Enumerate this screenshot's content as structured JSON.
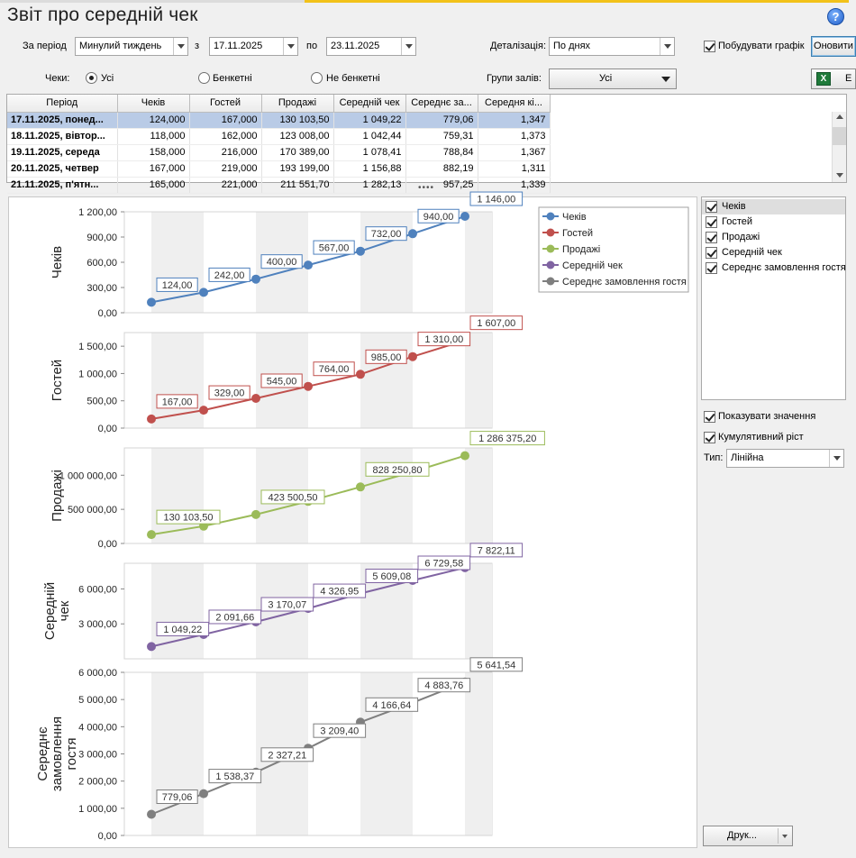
{
  "window": {
    "title": "Звіт про середній чек",
    "help_icon": "question-icon"
  },
  "filters": {
    "period_label": "За період",
    "period_value": "Минулий тиждень",
    "from_label": "з",
    "from_value": "17.11.2025",
    "to_label": "по",
    "to_value": "23.11.2025",
    "detail_label": "Деталізація:",
    "detail_value": "По днях",
    "build_chart_label": "Побудувати графік",
    "build_chart_checked": true,
    "update_label": "Оновити",
    "checks_label": "Чеки:",
    "radio_all": "Усі",
    "radio_banquet": "Бенкетні",
    "radio_nonbanquet": "Не бенкетні",
    "radio_selected": "all",
    "hall_groups_label": "Групи залів:",
    "hall_groups_value": "Усі",
    "excel_icon": "excel-icon",
    "excel_label": "E"
  },
  "table": {
    "columns": [
      "Період",
      "Чеків",
      "Гостей",
      "Продажі",
      "Середній чек",
      "Середнє за...",
      "Середня кі..."
    ],
    "rows": [
      [
        "17.11.2025, понед...",
        "124,000",
        "167,000",
        "130 103,50",
        "1 049,22",
        "779,06",
        "1,347"
      ],
      [
        "18.11.2025, вівтор...",
        "118,000",
        "162,000",
        "123 008,00",
        "1 042,44",
        "759,31",
        "1,373"
      ],
      [
        "19.11.2025, середа",
        "158,000",
        "216,000",
        "170 389,00",
        "1 078,41",
        "788,84",
        "1,367"
      ],
      [
        "20.11.2025, четвер",
        "167,000",
        "219,000",
        "193 199,00",
        "1 156,88",
        "882,19",
        "1,311"
      ],
      [
        "21.11.2025, п'ятн...",
        "165,000",
        "221,000",
        "211 551,70",
        "1 282,13",
        "957,25",
        "1,339"
      ]
    ],
    "selected_row": 0
  },
  "series_list": {
    "items": [
      {
        "label": "Чеків",
        "checked": true
      },
      {
        "label": "Гостей",
        "checked": true
      },
      {
        "label": "Продажі",
        "checked": true
      },
      {
        "label": "Середній чек",
        "checked": true
      },
      {
        "label": "Середнє замовлення гостя",
        "checked": true
      }
    ]
  },
  "options": {
    "show_values_label": "Показувати значення",
    "show_values_checked": true,
    "cumulative_label": "Кумулятивний ріст",
    "cumulative_checked": true,
    "type_label": "Тип:",
    "type_value": "Лінійна",
    "print_label": "Друк..."
  },
  "chart_data": [
    {
      "type": "line",
      "ylabel": [
        "Чеків"
      ],
      "color": "#4f81bd",
      "x": [
        1,
        2,
        3,
        4,
        5,
        6,
        7
      ],
      "values": [
        124,
        242,
        400,
        567,
        732,
        940,
        1146
      ],
      "labels": [
        "124,00",
        "242,00",
        "400,00",
        "567,00",
        "732,00",
        "940,00",
        "1 146,00"
      ],
      "labeled": [
        0,
        1,
        2,
        3,
        4,
        5,
        6
      ],
      "ylim": [
        0,
        1200
      ],
      "yticks": [
        0,
        300,
        600,
        900,
        1200
      ],
      "yticklabels": [
        "0,00",
        "300,00",
        "600,00",
        "900,00",
        "1 200,00"
      ],
      "legend": {
        "position": "top-right",
        "entries": [
          {
            "name": "Чеків",
            "color": "#4f81bd"
          },
          {
            "name": "Гостей",
            "color": "#c0504d"
          },
          {
            "name": "Продажі",
            "color": "#9bbb59"
          },
          {
            "name": "Середній чек",
            "color": "#8064a2"
          },
          {
            "name": "Середнє замовлення гостя",
            "color": "#7f7f7f"
          }
        ]
      }
    },
    {
      "type": "line",
      "ylabel": [
        "Гостей"
      ],
      "color": "#c0504d",
      "x": [
        1,
        2,
        3,
        4,
        5,
        6,
        7
      ],
      "values": [
        167,
        329,
        545,
        764,
        985,
        1310,
        1607
      ],
      "labels": [
        "167,00",
        "329,00",
        "545,00",
        "764,00",
        "985,00",
        "1 310,00",
        "1 607,00"
      ],
      "labeled": [
        0,
        1,
        2,
        3,
        4,
        5,
        6
      ],
      "ylim": [
        0,
        1750
      ],
      "yticks": [
        0,
        500,
        1000,
        1500
      ],
      "yticklabels": [
        "0,00",
        "500,00",
        "1 000,00",
        "1 500,00"
      ]
    },
    {
      "type": "line",
      "ylabel": [
        "Продажі"
      ],
      "color": "#9bbb59",
      "x": [
        1,
        2,
        3,
        4,
        5,
        6,
        7
      ],
      "values": [
        130103.5,
        253111.5,
        423500.5,
        616699.5,
        828250.8,
        1050000,
        1286375.2
      ],
      "labels": [
        "130 103,50",
        "",
        "423 500,50",
        "",
        "828 250,80",
        "",
        "1 286 375,20"
      ],
      "labeled": [
        0,
        2,
        4,
        6
      ],
      "ylim": [
        0,
        1400000
      ],
      "yticks": [
        0,
        500000,
        1000000
      ],
      "yticklabels": [
        "0,00",
        "500 000,00",
        "1 000 000,00"
      ]
    },
    {
      "type": "line",
      "ylabel": [
        "Середній",
        "чек"
      ],
      "color": "#8064a2",
      "x": [
        1,
        2,
        3,
        4,
        5,
        6,
        7
      ],
      "values": [
        1049.22,
        2091.66,
        3170.07,
        4326.95,
        5609.08,
        6729.58,
        7822.11
      ],
      "labels": [
        "1 049,22",
        "2 091,66",
        "3 170,07",
        "4 326,95",
        "5 609,08",
        "6 729,58",
        "7 822,11"
      ],
      "labeled": [
        0,
        1,
        2,
        3,
        4,
        5,
        6
      ],
      "ylim": [
        0,
        8200
      ],
      "yticks": [
        3000,
        6000
      ],
      "yticklabels": [
        "3 000,00",
        "6 000,00"
      ]
    },
    {
      "type": "line",
      "ylabel": [
        "Середнє",
        "замовлення",
        "гостя"
      ],
      "color": "#7f7f7f",
      "x": [
        1,
        2,
        3,
        4,
        5,
        6,
        7
      ],
      "values": [
        779.06,
        1538.37,
        2327.21,
        3209.4,
        4166.64,
        4883.76,
        5641.54
      ],
      "labels": [
        "779,06",
        "1 538,37",
        "2 327,21",
        "3 209,40",
        "4 166,64",
        "4 883,76",
        "5 641,54"
      ],
      "labeled": [
        0,
        1,
        2,
        3,
        4,
        5,
        6
      ],
      "ylim": [
        0,
        6000
      ],
      "yticks": [
        0,
        1000,
        2000,
        3000,
        4000,
        5000,
        6000
      ],
      "yticklabels": [
        "0,00",
        "1 000,00",
        "2 000,00",
        "3 000,00",
        "4 000,00",
        "5 000,00",
        "6 000,00"
      ]
    }
  ]
}
